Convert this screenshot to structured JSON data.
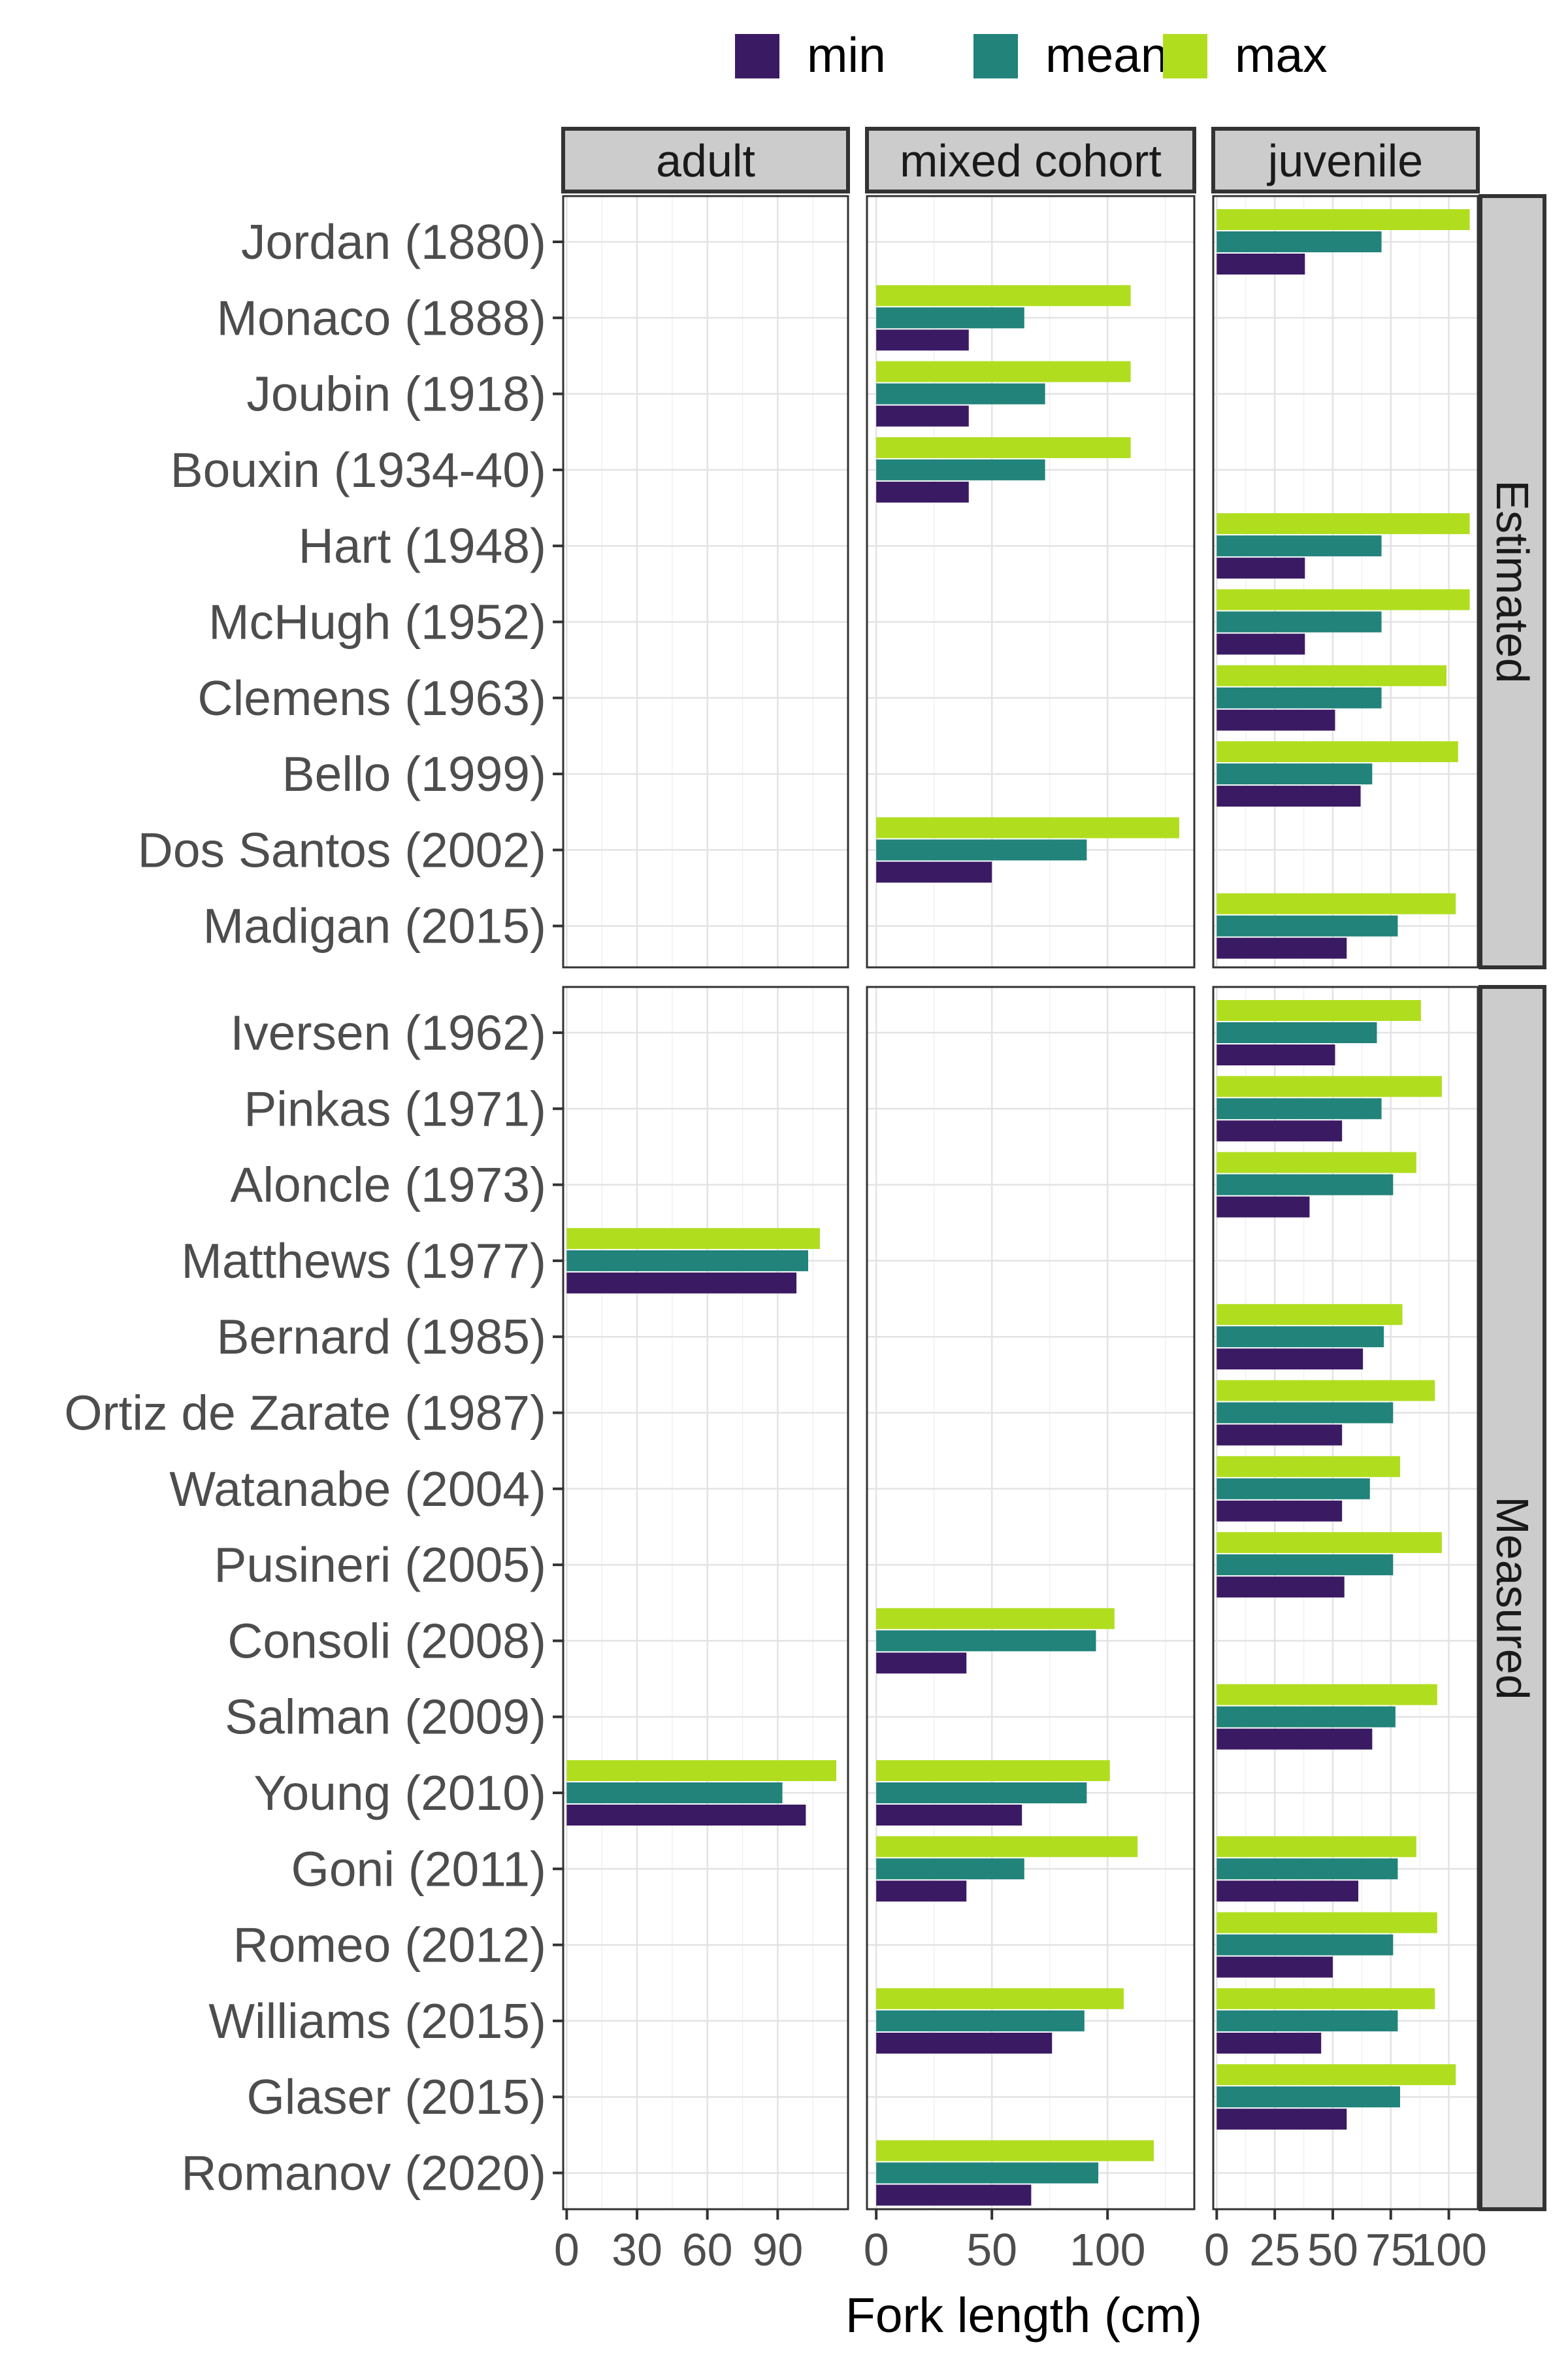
{
  "chart_data": {
    "type": "bar",
    "orientation": "horizontal",
    "xlabel": "Fork length (cm)",
    "legend": {
      "position": "top",
      "entries": [
        {
          "key": "min",
          "label": "min"
        },
        {
          "key": "mean",
          "label": "mean"
        },
        {
          "key": "max",
          "label": "max"
        }
      ]
    },
    "series_colors": {
      "min": "#3b1a64",
      "mean": "#21837a",
      "max": "#b0de1f"
    },
    "column_facets": [
      {
        "key": "adult",
        "label": "adult",
        "xlim": [
          -1.5,
          120
        ],
        "ticks": [
          0,
          30,
          60,
          90
        ],
        "tick_labels": [
          "0",
          "30",
          "60",
          "90"
        ]
      },
      {
        "key": "mixed",
        "label": "mixed cohort",
        "xlim": [
          -4,
          137.5
        ],
        "ticks": [
          0,
          50,
          100
        ],
        "tick_labels": [
          "0",
          "50",
          "100"
        ]
      },
      {
        "key": "juvenile",
        "label": "juvenile",
        "xlim": [
          -1.5,
          112.5
        ],
        "ticks": [
          0,
          25,
          50,
          75,
          100
        ],
        "tick_labels": [
          "0",
          "25",
          "50",
          "75",
          "100"
        ]
      }
    ],
    "row_facets": [
      {
        "label": "Estimated",
        "studies": [
          "Jordan (1880)",
          "Monaco (1888)",
          "Joubin (1918)",
          "Bouxin (1934-40)",
          "Hart (1948)",
          "McHugh (1952)",
          "Clemens (1963)",
          "Bello (1999)",
          "Dos Santos (2002)",
          "Madigan (2015)"
        ]
      },
      {
        "label": "Measured",
        "studies": [
          "Iversen (1962)",
          "Pinkas (1971)",
          "Aloncle (1973)",
          "Matthews (1977)",
          "Bernard (1985)",
          "Ortiz de Zarate (1987)",
          "Watanabe (2004)",
          "Pusineri (2005)",
          "Consoli (2008)",
          "Salman (2009)",
          "Young (2010)",
          "Goni (2011)",
          "Romeo (2012)",
          "Williams (2015)",
          "Glaser (2015)",
          "Romanov (2020)"
        ]
      }
    ],
    "data": [
      {
        "facet": "juvenile",
        "study": "Jordan (1880)",
        "min": 38,
        "mean": 71,
        "max": 109
      },
      {
        "facet": "mixed",
        "study": "Monaco (1888)",
        "min": 40,
        "mean": 64,
        "max": 110
      },
      {
        "facet": "mixed",
        "study": "Joubin (1918)",
        "min": 40,
        "mean": 73,
        "max": 110
      },
      {
        "facet": "mixed",
        "study": "Bouxin (1934-40)",
        "min": 40,
        "mean": 73,
        "max": 110
      },
      {
        "facet": "juvenile",
        "study": "Hart (1948)",
        "min": 38,
        "mean": 71,
        "max": 109
      },
      {
        "facet": "juvenile",
        "study": "McHugh (1952)",
        "min": 38,
        "mean": 71,
        "max": 109
      },
      {
        "facet": "juvenile",
        "study": "Clemens (1963)",
        "min": 51,
        "mean": 71,
        "max": 99
      },
      {
        "facet": "juvenile",
        "study": "Bello (1999)",
        "min": 62,
        "mean": 67,
        "max": 104
      },
      {
        "facet": "mixed",
        "study": "Dos Santos (2002)",
        "min": 50,
        "mean": 91,
        "max": 131
      },
      {
        "facet": "juvenile",
        "study": "Madigan (2015)",
        "min": 56,
        "mean": 78,
        "max": 103
      },
      {
        "facet": "juvenile",
        "study": "Iversen (1962)",
        "min": 51,
        "mean": 69,
        "max": 88
      },
      {
        "facet": "juvenile",
        "study": "Pinkas (1971)",
        "min": 54,
        "mean": 71,
        "max": 97
      },
      {
        "facet": "juvenile",
        "study": "Aloncle (1973)",
        "min": 40,
        "mean": 76,
        "max": 86
      },
      {
        "facet": "adult",
        "study": "Matthews (1977)",
        "min": 98,
        "mean": 103,
        "max": 108
      },
      {
        "facet": "juvenile",
        "study": "Bernard (1985)",
        "min": 63,
        "mean": 72,
        "max": 80
      },
      {
        "facet": "juvenile",
        "study": "Ortiz de Zarate (1987)",
        "min": 54,
        "mean": 76,
        "max": 94
      },
      {
        "facet": "juvenile",
        "study": "Watanabe (2004)",
        "min": 54,
        "mean": 66,
        "max": 79
      },
      {
        "facet": "juvenile",
        "study": "Pusineri (2005)",
        "min": 55,
        "mean": 76,
        "max": 97
      },
      {
        "facet": "mixed",
        "study": "Consoli (2008)",
        "min": 39,
        "mean": 95,
        "max": 103
      },
      {
        "facet": "juvenile",
        "study": "Salman (2009)",
        "min": 67,
        "mean": 77,
        "max": 95
      },
      {
        "facet": "adult",
        "study": "Young (2010)",
        "min": 102,
        "mean": 92,
        "max": 115
      },
      {
        "facet": "mixed",
        "study": "Young (2010)",
        "min": 63,
        "mean": 91,
        "max": 101
      },
      {
        "facet": "mixed",
        "study": "Goni (2011)",
        "min": 39,
        "mean": 64,
        "max": 113
      },
      {
        "facet": "juvenile",
        "study": "Goni (2011)",
        "min": 61,
        "mean": 78,
        "max": 86
      },
      {
        "facet": "juvenile",
        "study": "Romeo (2012)",
        "min": 50,
        "mean": 76,
        "max": 95
      },
      {
        "facet": "mixed",
        "study": "Williams (2015)",
        "min": 76,
        "mean": 90,
        "max": 107
      },
      {
        "facet": "juvenile",
        "study": "Williams (2015)",
        "min": 45,
        "mean": 78,
        "max": 94
      },
      {
        "facet": "juvenile",
        "study": "Glaser (2015)",
        "min": 56,
        "mean": 79,
        "max": 103
      },
      {
        "facet": "mixed",
        "study": "Romanov (2020)",
        "min": 67,
        "mean": 96,
        "max": 120
      }
    ]
  }
}
